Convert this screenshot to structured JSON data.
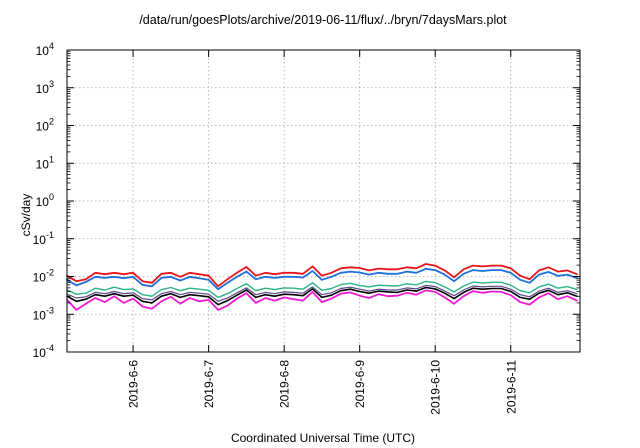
{
  "chart_data": {
    "type": "line",
    "title": "/data/run/goesPlots/archive/2019-06-11/flux/../bryn/7daysMars.plot",
    "xlabel": "Coordinated Universal Time (UTC)",
    "ylabel": "cSv/day",
    "yscale": "log",
    "ylim_exp": [
      -4,
      4
    ],
    "y_tick_base": "10",
    "y_tick_exponents": [
      "-4",
      "-3",
      "-2",
      "-1",
      "0",
      "1",
      "2",
      "3",
      "4"
    ],
    "xlim": [
      "2019-06-05 03:00",
      "2019-06-11 22:00"
    ],
    "x_ticks": [
      {
        "date": "2019-06-06 00:00",
        "label": "2019-6-6"
      },
      {
        "date": "2019-06-07 00:00",
        "label": "2019-6-7"
      },
      {
        "date": "2019-06-08 00:00",
        "label": "2019-6-8"
      },
      {
        "date": "2019-06-09 00:00",
        "label": "2019-6-9"
      },
      {
        "date": "2019-06-10 00:00",
        "label": "2019-6-10"
      },
      {
        "date": "2019-06-11 00:00",
        "label": "2019-6-11"
      }
    ],
    "grid": true,
    "x": [
      "2019-06-05 03:00",
      "2019-06-05 06:00",
      "2019-06-05 09:00",
      "2019-06-05 12:00",
      "2019-06-05 15:00",
      "2019-06-05 18:00",
      "2019-06-05 21:00",
      "2019-06-06 00:00",
      "2019-06-06 03:00",
      "2019-06-06 06:00",
      "2019-06-06 09:00",
      "2019-06-06 12:00",
      "2019-06-06 15:00",
      "2019-06-06 18:00",
      "2019-06-06 21:00",
      "2019-06-07 00:00",
      "2019-06-07 03:00",
      "2019-06-07 06:00",
      "2019-06-07 09:00",
      "2019-06-07 12:00",
      "2019-06-07 15:00",
      "2019-06-07 18:00",
      "2019-06-07 21:00",
      "2019-06-08 00:00",
      "2019-06-08 03:00",
      "2019-06-08 06:00",
      "2019-06-08 09:00",
      "2019-06-08 12:00",
      "2019-06-08 15:00",
      "2019-06-08 18:00",
      "2019-06-08 21:00",
      "2019-06-09 00:00",
      "2019-06-09 03:00",
      "2019-06-09 06:00",
      "2019-06-09 09:00",
      "2019-06-09 12:00",
      "2019-06-09 15:00",
      "2019-06-09 18:00",
      "2019-06-09 21:00",
      "2019-06-10 00:00",
      "2019-06-10 03:00",
      "2019-06-10 06:00",
      "2019-06-10 09:00",
      "2019-06-10 12:00",
      "2019-06-10 15:00",
      "2019-06-10 18:00",
      "2019-06-10 21:00",
      "2019-06-11 00:00",
      "2019-06-11 03:00",
      "2019-06-11 06:00",
      "2019-06-11 09:00",
      "2019-06-11 12:00",
      "2019-06-11 15:00",
      "2019-06-11 18:00",
      "2019-06-11 21:00"
    ],
    "series": [
      {
        "color": "#e8141c",
        "width": 1.8,
        "values": [
          0.0105,
          0.0075,
          0.0085,
          0.0125,
          0.0115,
          0.0125,
          0.0115,
          0.0125,
          0.0075,
          0.0068,
          0.0118,
          0.0125,
          0.0098,
          0.0125,
          0.0115,
          0.0105,
          0.0055,
          0.0085,
          0.0125,
          0.018,
          0.0105,
          0.0125,
          0.0115,
          0.0125,
          0.0125,
          0.0118,
          0.0185,
          0.0105,
          0.0125,
          0.0165,
          0.0175,
          0.0168,
          0.0145,
          0.0162,
          0.0155,
          0.0155,
          0.0175,
          0.0165,
          0.0215,
          0.0195,
          0.0145,
          0.0095,
          0.0155,
          0.0195,
          0.0185,
          0.0195,
          0.0195,
          0.0165,
          0.0105,
          0.0085,
          0.0145,
          0.0175,
          0.0135,
          0.0145,
          0.0115
        ]
      },
      {
        "color": "#1e6fd9",
        "width": 1.8,
        "values": [
          0.0082,
          0.0058,
          0.0072,
          0.0098,
          0.0092,
          0.0098,
          0.009,
          0.0098,
          0.006,
          0.0055,
          0.0092,
          0.0098,
          0.0078,
          0.0098,
          0.009,
          0.0082,
          0.0046,
          0.0068,
          0.0098,
          0.0135,
          0.0085,
          0.0098,
          0.0092,
          0.0098,
          0.0098,
          0.0094,
          0.014,
          0.0082,
          0.0098,
          0.0125,
          0.0135,
          0.0128,
          0.0112,
          0.0125,
          0.0118,
          0.0118,
          0.0135,
          0.0125,
          0.016,
          0.0148,
          0.0112,
          0.0075,
          0.0118,
          0.0148,
          0.014,
          0.0148,
          0.0148,
          0.0125,
          0.0082,
          0.0068,
          0.0112,
          0.0132,
          0.0104,
          0.0112,
          0.009
        ]
      },
      {
        "color": "#2bb38a",
        "width": 1.4,
        "values": [
          0.0044,
          0.0034,
          0.0036,
          0.0049,
          0.0044,
          0.0052,
          0.0045,
          0.0047,
          0.0033,
          0.003,
          0.0045,
          0.0051,
          0.0042,
          0.0049,
          0.0046,
          0.0043,
          0.0028,
          0.0035,
          0.0048,
          0.0064,
          0.0042,
          0.0049,
          0.0045,
          0.005,
          0.0049,
          0.0046,
          0.0068,
          0.0043,
          0.0048,
          0.0061,
          0.0066,
          0.0058,
          0.0053,
          0.0059,
          0.0057,
          0.0056,
          0.0064,
          0.006,
          0.0074,
          0.0069,
          0.0053,
          0.0039,
          0.0056,
          0.0071,
          0.0067,
          0.007,
          0.007,
          0.0059,
          0.0042,
          0.0037,
          0.0053,
          0.0063,
          0.0049,
          0.0054,
          0.0045
        ]
      },
      {
        "color": "#5a4a8a",
        "width": 1.2,
        "values": [
          0.0034,
          0.0027,
          0.0029,
          0.0038,
          0.0035,
          0.004,
          0.0035,
          0.0037,
          0.0026,
          0.0024,
          0.0035,
          0.004,
          0.0033,
          0.0038,
          0.0036,
          0.0034,
          0.0022,
          0.0027,
          0.0037,
          0.005,
          0.0033,
          0.0038,
          0.0035,
          0.0039,
          0.0038,
          0.0036,
          0.0053,
          0.0033,
          0.0037,
          0.0048,
          0.0052,
          0.0046,
          0.0041,
          0.0046,
          0.0044,
          0.0044,
          0.005,
          0.0047,
          0.0058,
          0.0054,
          0.0041,
          0.0031,
          0.0044,
          0.0056,
          0.0053,
          0.0055,
          0.0055,
          0.0046,
          0.0033,
          0.0029,
          0.0041,
          0.0049,
          0.0038,
          0.0042,
          0.0035
        ]
      },
      {
        "color": "#000000",
        "width": 1.6,
        "values": [
          0.003,
          0.0022,
          0.0025,
          0.0033,
          0.003,
          0.0035,
          0.003,
          0.0032,
          0.0022,
          0.002,
          0.003,
          0.0035,
          0.0028,
          0.0033,
          0.0031,
          0.0029,
          0.0018,
          0.0023,
          0.0032,
          0.0044,
          0.0028,
          0.0033,
          0.003,
          0.0034,
          0.0033,
          0.0031,
          0.0047,
          0.0028,
          0.0032,
          0.0042,
          0.0046,
          0.004,
          0.0036,
          0.0041,
          0.0039,
          0.0038,
          0.0044,
          0.0041,
          0.0051,
          0.0047,
          0.0036,
          0.0026,
          0.0038,
          0.0049,
          0.0046,
          0.0048,
          0.0048,
          0.004,
          0.0028,
          0.0025,
          0.0036,
          0.0043,
          0.0033,
          0.0037,
          0.003
        ]
      },
      {
        "color": "#ee1ad3",
        "width": 1.8,
        "values": [
          0.0024,
          0.0013,
          0.0019,
          0.0027,
          0.0021,
          0.003,
          0.002,
          0.0026,
          0.0016,
          0.0014,
          0.0022,
          0.0029,
          0.0019,
          0.0027,
          0.0022,
          0.0024,
          0.0013,
          0.0017,
          0.0026,
          0.0036,
          0.002,
          0.0027,
          0.0023,
          0.0028,
          0.0025,
          0.0023,
          0.0039,
          0.0021,
          0.0026,
          0.0035,
          0.0038,
          0.0031,
          0.0027,
          0.0034,
          0.003,
          0.0031,
          0.0037,
          0.0033,
          0.0043,
          0.0039,
          0.0028,
          0.0019,
          0.003,
          0.0041,
          0.0037,
          0.004,
          0.0039,
          0.0032,
          0.0021,
          0.0018,
          0.0028,
          0.0036,
          0.0025,
          0.003,
          0.0023
        ]
      }
    ]
  }
}
